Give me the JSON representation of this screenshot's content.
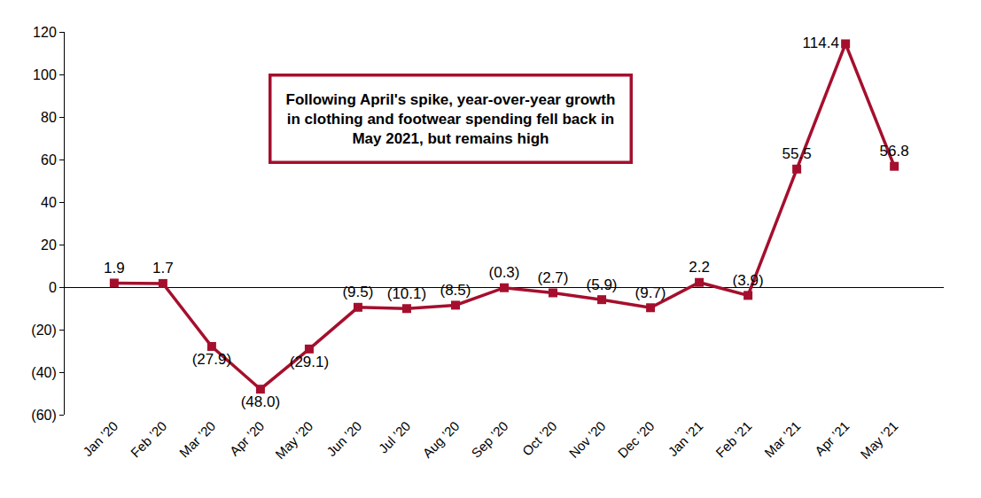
{
  "chart_data": {
    "type": "line",
    "categories": [
      "Jan ’20",
      "Feb ’20",
      "Mar ’20",
      "Apr ’20",
      "May ’20",
      "Jun ’20",
      "Jul ’20",
      "Aug ’20",
      "Sep ’20",
      "Oct ’20",
      "Nov ’20",
      "Dec ’20",
      "Jan ’21",
      "Feb ’21",
      "Mar ’21",
      "Apr ’21",
      "May ’21"
    ],
    "values": [
      1.9,
      1.7,
      -27.9,
      -48.0,
      -29.1,
      -9.5,
      -10.1,
      -8.5,
      -0.3,
      -2.7,
      -5.9,
      -9.7,
      2.2,
      -3.9,
      55.5,
      114.4,
      56.8
    ],
    "value_labels": [
      "1.9",
      "1.7",
      "(27.9)",
      "(48.0)",
      "(29.1)",
      "(9.5)",
      "(10.1)",
      "(8.5)",
      "(0.3)",
      "(2.7)",
      "(5.9)",
      "(9.7)",
      "2.2",
      "(3.9)",
      "55.5",
      "114.4",
      "56.8"
    ],
    "data_labels": true,
    "color": "#a50f2d",
    "marker": "square",
    "line_style": "solid",
    "ylim": [
      -60,
      120
    ],
    "yticks": [
      {
        "value": -60,
        "label": "(60)"
      },
      {
        "value": -40,
        "label": "(40)"
      },
      {
        "value": -20,
        "label": "(20)"
      },
      0,
      20,
      40,
      60,
      80,
      100,
      120
    ],
    "grid": false,
    "annotation": {
      "lines": [
        "Following April's spike, year-over-year growth",
        "in clothing and footwear spending fell back in",
        "May 2021, but remains high"
      ]
    }
  }
}
